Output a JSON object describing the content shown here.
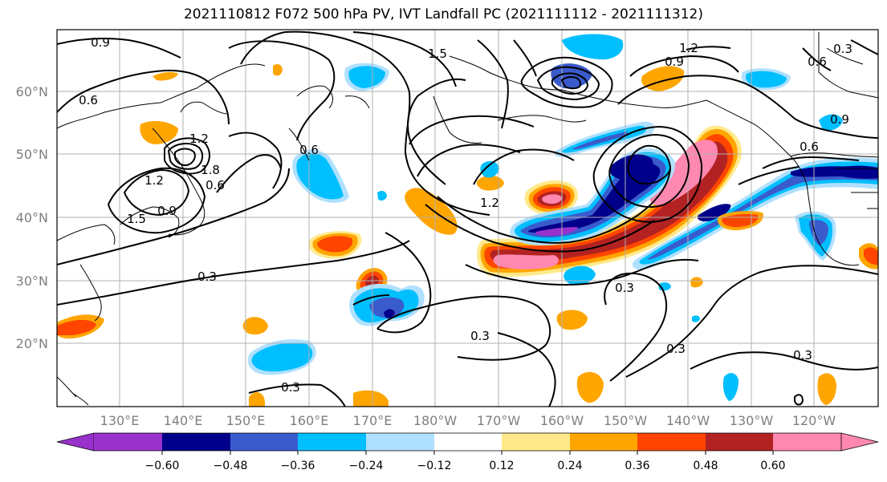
{
  "title": "2021110812 F072 500 hPa PV, IVT Landfall PC (2021111112 - 2021111312)",
  "lat_labels": [
    "60°N",
    "50°N",
    "40°N",
    "30°N",
    "20°N"
  ],
  "lon_labels": [
    "130°E",
    "140°E",
    "150°E",
    "160°E",
    "170°E",
    "180°W",
    "170°W",
    "160°W",
    "150°W",
    "140°W",
    "130°W",
    "120°W"
  ],
  "contour_labels": [
    "0.9",
    "0.6",
    "0.3",
    "1.2",
    "1.5",
    "1.8",
    "0.9",
    "1.2",
    "1.5",
    "0.6",
    "0.3",
    "0.3",
    "0.3",
    "0.3",
    "0.3",
    "1.2",
    "0.9",
    "0.6",
    "0.3",
    "0.6",
    "0.9",
    "0.6",
    "1.2"
  ],
  "colorbar": {
    "ticks": [
      "−0.60",
      "−0.48",
      "−0.36",
      "−0.24",
      "−0.12",
      "0.12",
      "0.24",
      "0.36",
      "0.48",
      "0.60"
    ],
    "colors": [
      "#9932CC",
      "#00008B",
      "#3A5BCC",
      "#00BFFF",
      "#B0E0FF",
      "#FFFFFF",
      "#FFE98A",
      "#FFA500",
      "#FF4500",
      "#B22222",
      "#FF88B0"
    ]
  },
  "fill_colors": {
    "pink": "#FF88B0",
    "darkred": "#B22222",
    "orangered": "#FF4500",
    "orange": "#FFA500",
    "yellow": "#FFE98A",
    "lightblue": "#B0E0FF",
    "skyblue": "#00BFFF",
    "royal": "#3A5BCC",
    "navy": "#00008B",
    "purple": "#9932CC"
  }
}
